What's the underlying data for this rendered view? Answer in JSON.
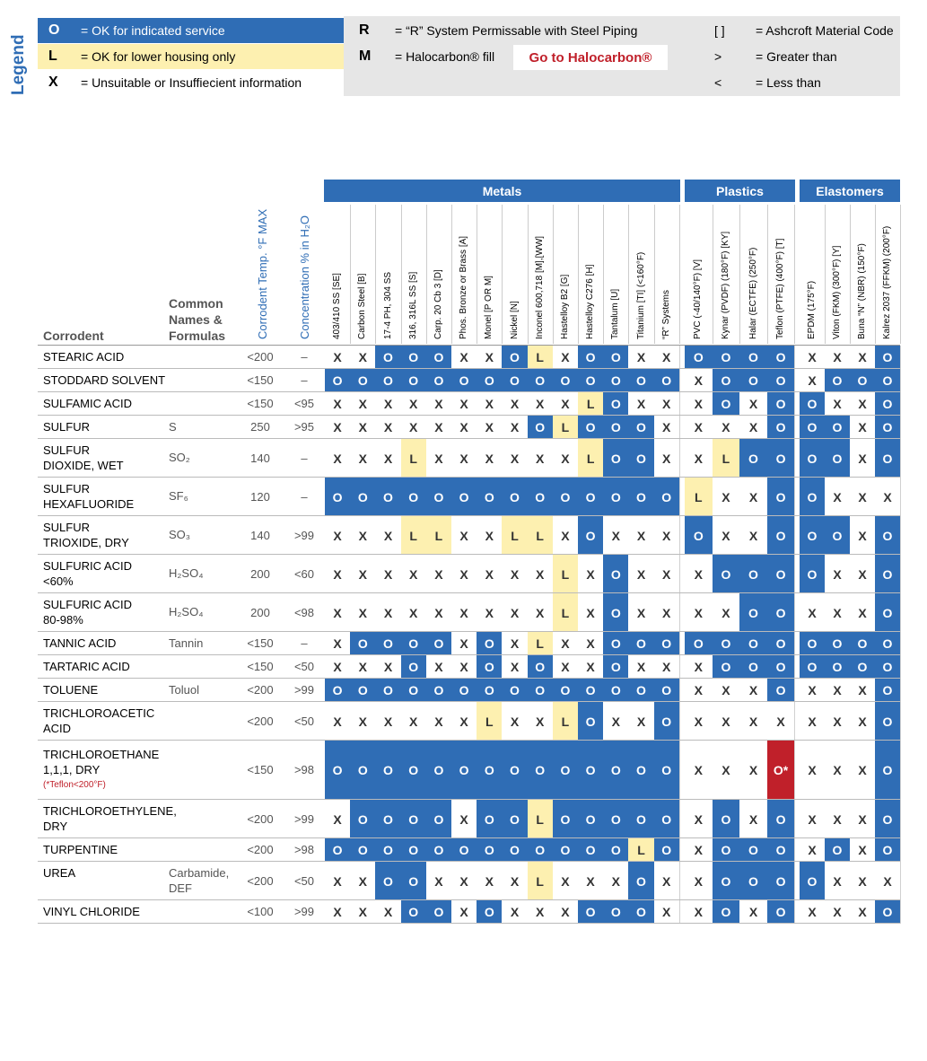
{
  "legend": {
    "title": "Legend",
    "items": [
      {
        "symbol": "O",
        "text": "= OK for indicated service"
      },
      {
        "symbol": "L",
        "text": "= OK for lower housing only"
      },
      {
        "symbol": "X",
        "text": "= Unsuitable or Insuffiecient information"
      }
    ],
    "notes": [
      {
        "symbol": "R",
        "text": "= “R” System Permissable with Steel Piping"
      },
      {
        "symbol": "M",
        "text": "= Halocarbon® fill"
      }
    ],
    "link": "Go to Halocarbon®",
    "codes": [
      {
        "symbol": "[ ]",
        "text": "= Ashcroft Material Code"
      },
      {
        "symbol": ">",
        "text": "= Greater than"
      },
      {
        "symbol": "<",
        "text": "= Less than"
      }
    ]
  },
  "table": {
    "headers": {
      "corrodent": "Corrodent",
      "common": [
        "Common",
        "Names &",
        "Formulas"
      ],
      "temp": "Corrodent Temp. °F MAX",
      "conc": "Concentration % in H₂O"
    },
    "groups": [
      {
        "name": "Metals",
        "columns": [
          "403/410 SS [SE]",
          "Carbon Steel [B]",
          "17-4 PH, 304 SS",
          "316, 316L SS [S]",
          "Carp. 20 Cb 3 [D]",
          "Phos. Bronze or Brass [A]",
          "Monel [P OR M]",
          "Nickel [N]",
          "Inconel 600,718 [M],[WW]",
          "Hastelloy B2 [G]",
          "Hastelloy C276 [H]",
          "Tantalum [U]",
          "Titanium [TI] (<160°F)",
          "“R” Systems"
        ]
      },
      {
        "name": "Plastics",
        "columns": [
          "PVC (-40/140°F) [V]",
          "Kynar (PVDF) (180°F) [KY]",
          "Halar (ECTFE) (250°F)",
          "Teflon (PTFE) (400°F) [T]"
        ]
      },
      {
        "name": "Elastomers",
        "columns": [
          "EPDM (175°F)",
          "Viton (FKM) (300°F) [Y]",
          "Buna “N” (NBR) (150°F)",
          "Kalrez 2037 (FFKM) (200°F)"
        ]
      }
    ],
    "rows": [
      {
        "corrodent": [
          "STEARIC ACID"
        ],
        "common": [],
        "temp": "<200",
        "conc": "–",
        "ratings": [
          "X",
          "X",
          "O",
          "O",
          "O",
          "X",
          "X",
          "O",
          "L",
          "X",
          "O",
          "O",
          "X",
          "X",
          "O",
          "O",
          "O",
          "O",
          "X",
          "X",
          "X",
          "O"
        ]
      },
      {
        "corrodent": [
          "STODDARD SOLVENT"
        ],
        "common": [],
        "temp": "<150",
        "conc": "–",
        "ratings": [
          "O",
          "O",
          "O",
          "O",
          "O",
          "O",
          "O",
          "O",
          "O",
          "O",
          "O",
          "O",
          "O",
          "O",
          "X",
          "O",
          "O",
          "O",
          "X",
          "O",
          "O",
          "O"
        ]
      },
      {
        "corrodent": [
          "SULFAMIC ACID"
        ],
        "common": [],
        "temp": "<150",
        "conc": "<95",
        "ratings": [
          "X",
          "X",
          "X",
          "X",
          "X",
          "X",
          "X",
          "X",
          "X",
          "X",
          "L",
          "O",
          "X",
          "X",
          "X",
          "O",
          "X",
          "O",
          "O",
          "X",
          "X",
          "O"
        ]
      },
      {
        "corrodent": [
          "SULFUR"
        ],
        "common": [
          "S"
        ],
        "temp": "250",
        "conc": ">95",
        "ratings": [
          "X",
          "X",
          "X",
          "X",
          "X",
          "X",
          "X",
          "X",
          "O",
          "L",
          "O",
          "O",
          "O",
          "X",
          "X",
          "X",
          "X",
          "O",
          "O",
          "O",
          "X",
          "O"
        ]
      },
      {
        "corrodent": [
          "SULFUR",
          "DIOXIDE, WET"
        ],
        "common": [
          "SO₂"
        ],
        "temp": "140",
        "conc": "–",
        "ratings": [
          "X",
          "X",
          "X",
          "L",
          "X",
          "X",
          "X",
          "X",
          "X",
          "X",
          "L",
          "O",
          "O",
          "X",
          "X",
          "L",
          "O",
          "O",
          "O",
          "O",
          "X",
          "O"
        ]
      },
      {
        "corrodent": [
          "SULFUR",
          "HEXAFLUORIDE"
        ],
        "common": [
          "SF₆"
        ],
        "temp": "120",
        "conc": "–",
        "ratings": [
          "O",
          "O",
          "O",
          "O",
          "O",
          "O",
          "O",
          "O",
          "O",
          "O",
          "O",
          "O",
          "O",
          "O",
          "L",
          "X",
          "X",
          "O",
          "O",
          "X",
          "X",
          "X"
        ]
      },
      {
        "corrodent": [
          "SULFUR",
          "TRIOXIDE, DRY"
        ],
        "common": [
          "SO₃"
        ],
        "temp": "140",
        "conc": ">99",
        "ratings": [
          "X",
          "X",
          "X",
          "L",
          "L",
          "X",
          "X",
          "L",
          "L",
          "X",
          "O",
          "X",
          "X",
          "X",
          "O",
          "X",
          "X",
          "O",
          "O",
          "O",
          "X",
          "O"
        ]
      },
      {
        "corrodent": [
          "SULFURIC ACID",
          "<60%"
        ],
        "common": [
          "H₂SO₄"
        ],
        "temp": "200",
        "conc": "<60",
        "ratings": [
          "X",
          "X",
          "X",
          "X",
          "X",
          "X",
          "X",
          "X",
          "X",
          "L",
          "X",
          "O",
          "X",
          "X",
          "X",
          "O",
          "O",
          "O",
          "O",
          "X",
          "X",
          "O"
        ]
      },
      {
        "corrodent": [
          "SULFURIC ACID",
          "80-98%"
        ],
        "common": [
          "H₂SO₄"
        ],
        "temp": "200",
        "conc": "<98",
        "ratings": [
          "X",
          "X",
          "X",
          "X",
          "X",
          "X",
          "X",
          "X",
          "X",
          "L",
          "X",
          "O",
          "X",
          "X",
          "X",
          "X",
          "O",
          "O",
          "X",
          "X",
          "X",
          "O"
        ]
      },
      {
        "corrodent": [
          "TANNIC ACID"
        ],
        "common": [
          "Tannin"
        ],
        "temp": "<150",
        "conc": "–",
        "ratings": [
          "X",
          "O",
          "O",
          "O",
          "O",
          "X",
          "O",
          "X",
          "L",
          "X",
          "X",
          "O",
          "O",
          "O",
          "O",
          "O",
          "O",
          "O",
          "O",
          "O",
          "O",
          "O"
        ]
      },
      {
        "corrodent": [
          "TARTARIC ACID"
        ],
        "common": [],
        "temp": "<150",
        "conc": "<50",
        "ratings": [
          "X",
          "X",
          "X",
          "O",
          "X",
          "X",
          "O",
          "X",
          "O",
          "X",
          "X",
          "O",
          "X",
          "X",
          "X",
          "O",
          "O",
          "O",
          "O",
          "O",
          "O",
          "O"
        ]
      },
      {
        "corrodent": [
          "TOLUENE"
        ],
        "common": [
          "Toluol"
        ],
        "temp": "<200",
        "conc": ">99",
        "ratings": [
          "O",
          "O",
          "O",
          "O",
          "O",
          "O",
          "O",
          "O",
          "O",
          "O",
          "O",
          "O",
          "O",
          "O",
          "X",
          "X",
          "X",
          "O",
          "X",
          "X",
          "X",
          "O"
        ]
      },
      {
        "corrodent": [
          "TRICHLOROACETIC",
          "ACID"
        ],
        "common": [],
        "temp": "<200",
        "conc": "<50",
        "ratings": [
          "X",
          "X",
          "X",
          "X",
          "X",
          "X",
          "L",
          "X",
          "X",
          "L",
          "O",
          "X",
          "X",
          "O",
          "X",
          "X",
          "X",
          "X",
          "X",
          "X",
          "X",
          "O"
        ]
      },
      {
        "corrodent": [
          "TRICHLOROETHANE",
          "1,1,1, DRY"
        ],
        "note": "(*Teflon<200°F)",
        "common": [],
        "temp": "<150",
        "conc": ">98",
        "ratings": [
          "O",
          "O",
          "O",
          "O",
          "O",
          "O",
          "O",
          "O",
          "O",
          "O",
          "O",
          "O",
          "O",
          "O",
          "X",
          "X",
          "X",
          "O*",
          "X",
          "X",
          "X",
          "O"
        ]
      },
      {
        "corrodent": [
          "TRICHLOROETHYLENE,",
          "DRY"
        ],
        "common": [],
        "temp": "<200",
        "conc": ">99",
        "ratings": [
          "X",
          "O",
          "O",
          "O",
          "O",
          "X",
          "O",
          "O",
          "L",
          "O",
          "O",
          "O",
          "O",
          "O",
          "X",
          "O",
          "X",
          "O",
          "X",
          "X",
          "X",
          "O"
        ]
      },
      {
        "corrodent": [
          "TURPENTINE"
        ],
        "common": [],
        "temp": "<200",
        "conc": ">98",
        "ratings": [
          "O",
          "O",
          "O",
          "O",
          "O",
          "O",
          "O",
          "O",
          "O",
          "O",
          "O",
          "O",
          "L",
          "O",
          "X",
          "O",
          "O",
          "O",
          "X",
          "O",
          "X",
          "O"
        ]
      },
      {
        "corrodent": [
          "UREA"
        ],
        "common": [
          "Carbamide,",
          "DEF"
        ],
        "temp": "<200",
        "conc": "<50",
        "ratings": [
          "X",
          "X",
          "O",
          "O",
          "X",
          "X",
          "X",
          "X",
          "L",
          "X",
          "X",
          "X",
          "O",
          "X",
          "X",
          "O",
          "O",
          "O",
          "O",
          "X",
          "X",
          "X"
        ]
      },
      {
        "corrodent": [
          "VINYL CHLORIDE"
        ],
        "common": [],
        "temp": "<100",
        "conc": ">99",
        "ratings": [
          "X",
          "X",
          "X",
          "O",
          "O",
          "X",
          "O",
          "X",
          "X",
          "X",
          "O",
          "O",
          "O",
          "X",
          "X",
          "O",
          "X",
          "O",
          "X",
          "X",
          "X",
          "O"
        ]
      }
    ]
  }
}
